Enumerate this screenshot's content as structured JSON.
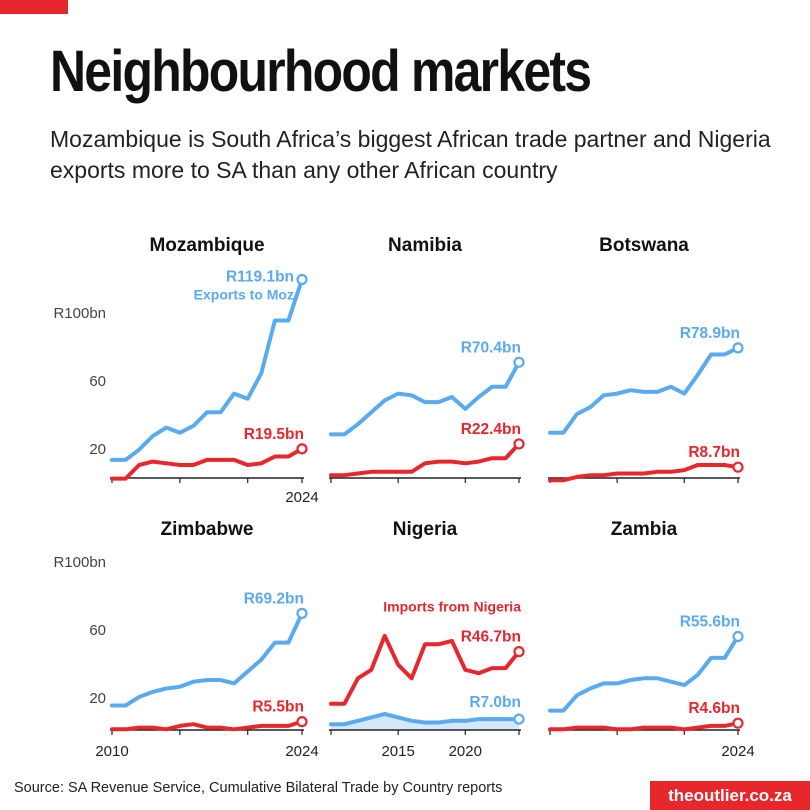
{
  "header": {
    "title": "Neighbourhood markets",
    "subtitle": "Mozambique is South Africa’s biggest African trade partner and Nigeria exports more to SA than any other African country"
  },
  "footer": {
    "source": "Source: SA Revenue Service, Cumulative Bilateral Trade by Country reports",
    "brand": "theoutlier.co.za"
  },
  "colors": {
    "exports": "#5aaaf0",
    "imports": "#e8272d",
    "imports_fill": "#d3e8fa",
    "axis": "#222222",
    "text": "#111111",
    "tick_text": "#444444"
  },
  "chart_data": [
    {
      "type": "line",
      "title": "Mozambique",
      "x": [
        2010,
        2011,
        2012,
        2013,
        2014,
        2015,
        2016,
        2017,
        2018,
        2019,
        2020,
        2021,
        2022,
        2023,
        2024
      ],
      "ylim": [
        0,
        120
      ],
      "yticks": [
        "20",
        "60",
        "R100bn"
      ],
      "series": [
        {
          "values": [
            13,
            13,
            19,
            27,
            32,
            29,
            33,
            41,
            41,
            52,
            49,
            64,
            95,
            95,
            119.1
          ],
          "end_label": "R119.1bn",
          "annotation": "Exports to Moz"
        },
        {
          "values": [
            2,
            2,
            10,
            12,
            11,
            10,
            10,
            13,
            13,
            13,
            10,
            11,
            15,
            15,
            19.5
          ],
          "end_label": "R19.5bn"
        }
      ]
    },
    {
      "type": "line",
      "title": "Namibia",
      "x": [
        2010,
        2011,
        2012,
        2013,
        2014,
        2015,
        2016,
        2017,
        2018,
        2019,
        2020,
        2021,
        2022,
        2023,
        2024
      ],
      "ylim": [
        0,
        120
      ],
      "yticks": [],
      "series": [
        {
          "values": [
            28,
            28,
            34,
            41,
            48,
            52,
            51,
            47,
            47,
            50,
            43,
            50,
            56,
            56,
            70.4
          ],
          "end_label": "R70.4bn"
        },
        {
          "values": [
            4,
            4,
            5,
            6,
            6,
            6,
            6,
            11,
            12,
            12,
            11,
            12,
            14,
            14,
            22.4
          ],
          "end_label": "R22.4bn"
        }
      ]
    },
    {
      "type": "line",
      "title": "Botswana",
      "x": [
        2010,
        2011,
        2012,
        2013,
        2014,
        2015,
        2016,
        2017,
        2018,
        2019,
        2020,
        2021,
        2022,
        2023,
        2024
      ],
      "ylim": [
        0,
        120
      ],
      "yticks": [],
      "series": [
        {
          "values": [
            29,
            29,
            40,
            44,
            51,
            52,
            54,
            53,
            53,
            56,
            52,
            63,
            75,
            75,
            78.9
          ],
          "end_label": "R78.9bn"
        },
        {
          "values": [
            1,
            1,
            3,
            4,
            4,
            5,
            5,
            5,
            6,
            6,
            7,
            10,
            10,
            10,
            8.7
          ],
          "end_label": "R8.7bn"
        }
      ]
    },
    {
      "type": "line",
      "title": "Zimbabwe",
      "x": [
        2010,
        2011,
        2012,
        2013,
        2014,
        2015,
        2016,
        2017,
        2018,
        2019,
        2020,
        2021,
        2022,
        2023,
        2024
      ],
      "ylim": [
        0,
        120
      ],
      "yticks": [
        "20",
        "60",
        "R100bn"
      ],
      "series": [
        {
          "values": [
            15,
            15,
            20,
            23,
            25,
            26,
            29,
            30,
            30,
            28,
            35,
            42,
            52,
            52,
            69.2
          ],
          "end_label": "R69.2bn"
        },
        {
          "values": [
            1,
            1,
            2,
            2,
            1,
            3,
            4,
            2,
            2,
            1,
            2,
            3,
            3,
            3,
            5.5
          ],
          "end_label": "R5.5bn"
        }
      ]
    },
    {
      "type": "area",
      "title": "Nigeria",
      "x": [
        2010,
        2011,
        2012,
        2013,
        2014,
        2015,
        2016,
        2017,
        2018,
        2019,
        2020,
        2021,
        2022,
        2023,
        2024
      ],
      "xticks": [
        "2015",
        "2020"
      ],
      "ylim": [
        0,
        120
      ],
      "yticks": [],
      "series": [
        {
          "values": [
            4,
            4,
            6,
            8,
            10,
            8,
            6,
            5,
            5,
            6,
            6,
            7,
            7,
            7,
            7.0
          ],
          "end_label": "R7.0bn"
        },
        {
          "values": [
            16,
            16,
            31,
            36,
            56,
            39,
            31,
            51,
            51,
            53,
            36,
            34,
            37,
            37,
            46.7
          ],
          "end_label": "R46.7bn",
          "annotation": "Imports from Nigeria"
        }
      ]
    },
    {
      "type": "line",
      "title": "Zambia",
      "x": [
        2010,
        2011,
        2012,
        2013,
        2014,
        2015,
        2016,
        2017,
        2018,
        2019,
        2020,
        2021,
        2022,
        2023,
        2024
      ],
      "ylim": [
        0,
        120
      ],
      "yticks": [],
      "series": [
        {
          "values": [
            12,
            12,
            21,
            25,
            28,
            28,
            30,
            31,
            31,
            29,
            27,
            33,
            43,
            43,
            55.6
          ],
          "end_label": "R55.6bn"
        },
        {
          "values": [
            1,
            1,
            2,
            2,
            2,
            1,
            1,
            2,
            2,
            2,
            1,
            2,
            3,
            3,
            4.6
          ],
          "end_label": "R4.6bn"
        }
      ]
    }
  ],
  "x_axis": {
    "start_label": "2010",
    "end_label": "2024"
  }
}
